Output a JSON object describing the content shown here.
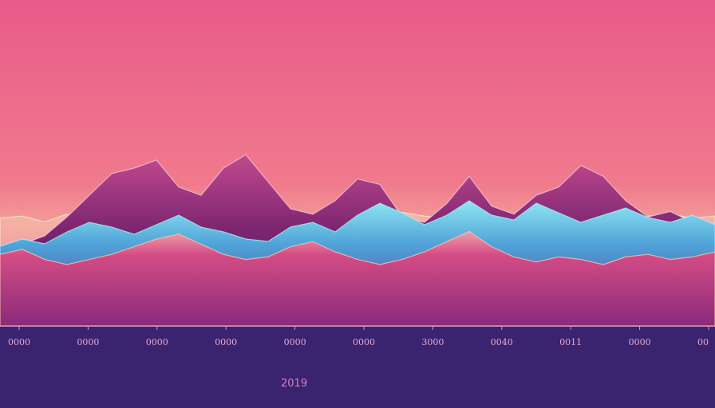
{
  "chart_data": {
    "type": "area",
    "title": "",
    "xlabel": "",
    "ylabel": "",
    "x_ticks": [
      "0000",
      "0000",
      "0000",
      "0000",
      "0000",
      "0000",
      "3000",
      "0040",
      "0011",
      "0000",
      "00"
    ],
    "year_label": "2019",
    "grid": false,
    "legend": "none",
    "colors": {
      "sky_top": "#e95a8a",
      "sky_mid": "#f07a8c",
      "horizon": "#f7f0c8",
      "peak_dark": "#5c1f6e",
      "peak_mid": "#b8337e",
      "blue_layer": "#4fa3d8",
      "cyan_glow": "#8fe6f2",
      "foreground": "#c2367e",
      "base": "#3a2470",
      "axis_line": "#e48fbf"
    },
    "series": [
      {
        "values": [
          0.22,
          0.24,
          0.18,
          0.26,
          0.2,
          0.28,
          0.24,
          0.3,
          0.26,
          0.22,
          0.28,
          0.24,
          0.2,
          0.26,
          0.24,
          0.22,
          0.2,
          0.26,
          0.28,
          0.24,
          0.22,
          0.24,
          0.26,
          0.22,
          0.2,
          0.24,
          0.26,
          0.22,
          0.2,
          0.24,
          0.26,
          0.22,
          0.24
        ]
      },
      {
        "values": [
          0.1,
          0.14,
          0.2,
          0.34,
          0.5,
          0.66,
          0.7,
          0.76,
          0.56,
          0.5,
          0.7,
          0.8,
          0.6,
          0.4,
          0.36,
          0.46,
          0.62,
          0.58,
          0.34,
          0.3,
          0.44,
          0.64,
          0.42,
          0.36,
          0.5,
          0.56,
          0.72,
          0.64,
          0.46,
          0.34,
          0.38,
          0.3,
          0.2
        ]
      },
      {
        "values": [
          0.24,
          0.3,
          0.26,
          0.36,
          0.44,
          0.4,
          0.34,
          0.42,
          0.5,
          0.4,
          0.36,
          0.3,
          0.28,
          0.4,
          0.44,
          0.36,
          0.5,
          0.6,
          0.52,
          0.42,
          0.5,
          0.62,
          0.5,
          0.46,
          0.6,
          0.52,
          0.44,
          0.5,
          0.56,
          0.48,
          0.44,
          0.5,
          0.42
        ]
      },
      {
        "values": [
          0.38,
          0.42,
          0.34,
          0.3,
          0.34,
          0.38,
          0.44,
          0.5,
          0.54,
          0.46,
          0.38,
          0.34,
          0.36,
          0.44,
          0.48,
          0.4,
          0.34,
          0.3,
          0.34,
          0.4,
          0.48,
          0.56,
          0.44,
          0.36,
          0.32,
          0.36,
          0.34,
          0.3,
          0.36,
          0.38,
          0.34,
          0.36,
          0.4
        ]
      }
    ]
  }
}
